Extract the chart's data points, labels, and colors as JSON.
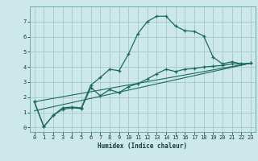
{
  "xlabel": "Humidex (Indice chaleur)",
  "bg_color": "#cce8e8",
  "grid_color": "#aacccc",
  "line_color": "#1a6b5a",
  "xlim": [
    -0.5,
    23.5
  ],
  "ylim": [
    -0.3,
    8.0
  ],
  "yticks": [
    0,
    1,
    2,
    3,
    4,
    5,
    6,
    7
  ],
  "xticks": [
    0,
    1,
    2,
    3,
    4,
    5,
    6,
    7,
    8,
    9,
    10,
    11,
    12,
    13,
    14,
    15,
    16,
    17,
    18,
    19,
    20,
    21,
    22,
    23
  ],
  "line1_x": [
    0,
    1,
    2,
    3,
    4,
    5,
    6,
    7,
    8,
    9,
    10,
    11,
    12,
    13,
    14,
    15,
    16,
    17,
    18,
    19,
    20,
    21,
    22,
    23
  ],
  "line1_y": [
    1.7,
    0.05,
    0.8,
    1.3,
    1.35,
    1.3,
    2.8,
    3.3,
    3.85,
    3.75,
    4.85,
    6.2,
    7.0,
    7.35,
    7.35,
    6.7,
    6.4,
    6.35,
    6.05,
    4.65,
    4.2,
    4.35,
    4.2,
    4.25
  ],
  "line2_x": [
    0,
    1,
    2,
    3,
    4,
    5,
    6,
    7,
    8,
    9,
    10,
    11,
    12,
    13,
    14,
    15,
    16,
    17,
    18,
    19,
    20,
    21,
    22,
    23
  ],
  "line2_y": [
    1.7,
    0.05,
    0.8,
    1.2,
    1.3,
    1.25,
    2.65,
    2.1,
    2.5,
    2.3,
    2.7,
    2.9,
    3.2,
    3.55,
    3.85,
    3.7,
    3.85,
    3.9,
    4.0,
    4.05,
    4.1,
    4.2,
    4.2,
    4.25
  ],
  "line3_x": [
    0,
    23
  ],
  "line3_y": [
    1.7,
    4.25
  ],
  "line4_x": [
    0,
    23
  ],
  "line4_y": [
    1.1,
    4.25
  ]
}
